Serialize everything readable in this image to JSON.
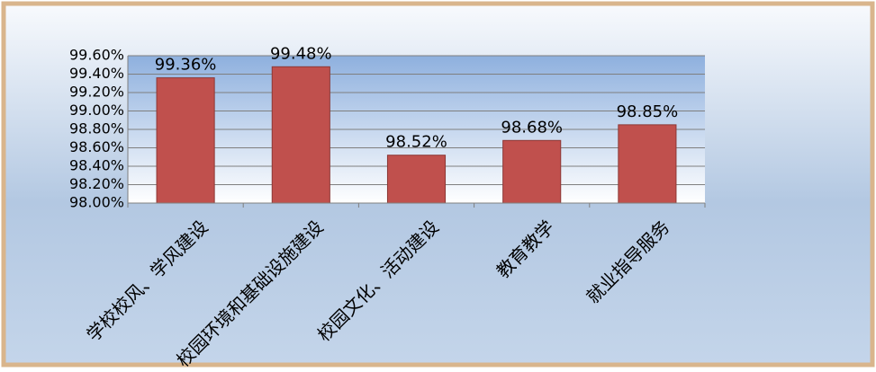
{
  "chart_data": {
    "type": "bar",
    "categories": [
      "学校校风、学风建设",
      "校园环境和基础设施建设",
      "校园文化、活动建设",
      "教育教学",
      "就业指导服务"
    ],
    "values": [
      99.36,
      99.48,
      98.52,
      98.68,
      98.85
    ],
    "value_labels": [
      "99.36%",
      "99.48%",
      "98.52%",
      "98.68%",
      "98.85%"
    ],
    "color": "#c0504d",
    "ylim": [
      98,
      99.6
    ],
    "yticks": [
      {
        "value": 98,
        "label": "98.00%"
      },
      {
        "value": 98.2,
        "label": "98.20%"
      },
      {
        "value": 98.4,
        "label": "98.40%"
      },
      {
        "value": 98.6,
        "label": "98.60%"
      },
      {
        "value": 98.8,
        "label": "98.80%"
      },
      {
        "value": 99,
        "label": "99.00%"
      },
      {
        "value": 99.2,
        "label": "99.20%"
      },
      {
        "value": 99.4,
        "label": "99.40%"
      },
      {
        "value": 99.6,
        "label": "99.60%"
      }
    ],
    "grid": true
  }
}
